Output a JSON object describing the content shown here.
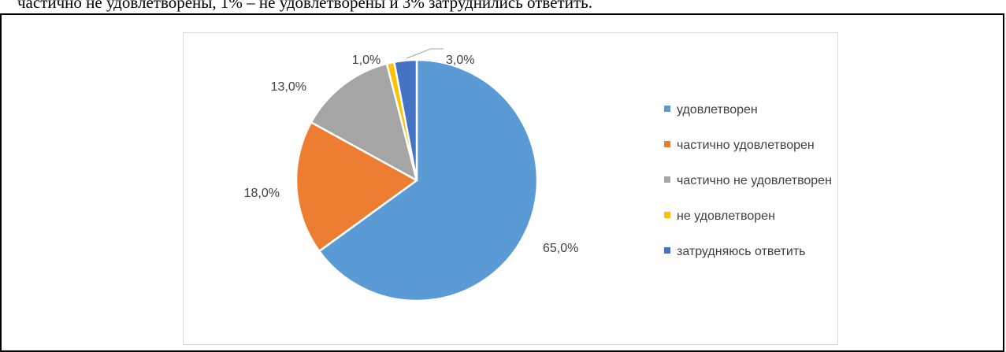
{
  "intro_text": "частично не удовлетворены, 1% – не удовлетворены и 3% затруднились ответить.",
  "chart_data": {
    "type": "pie",
    "title": "",
    "categories": [
      "удовлетворен",
      "частично удовлетворен",
      "частично не удовлетворен",
      "не удовлетворен",
      "затрудняюсь ответить"
    ],
    "values": [
      65.0,
      18.0,
      13.0,
      1.0,
      3.0
    ],
    "value_labels": [
      "65,0%",
      "18,0%",
      "13,0%",
      "1,0%",
      "3,0%"
    ],
    "colors": [
      "#5b9bd5",
      "#ed7d31",
      "#a5a5a5",
      "#ffc000",
      "#4472c4"
    ],
    "legend_position": "right",
    "start_angle_deg": 0,
    "direction": "clockwise"
  }
}
